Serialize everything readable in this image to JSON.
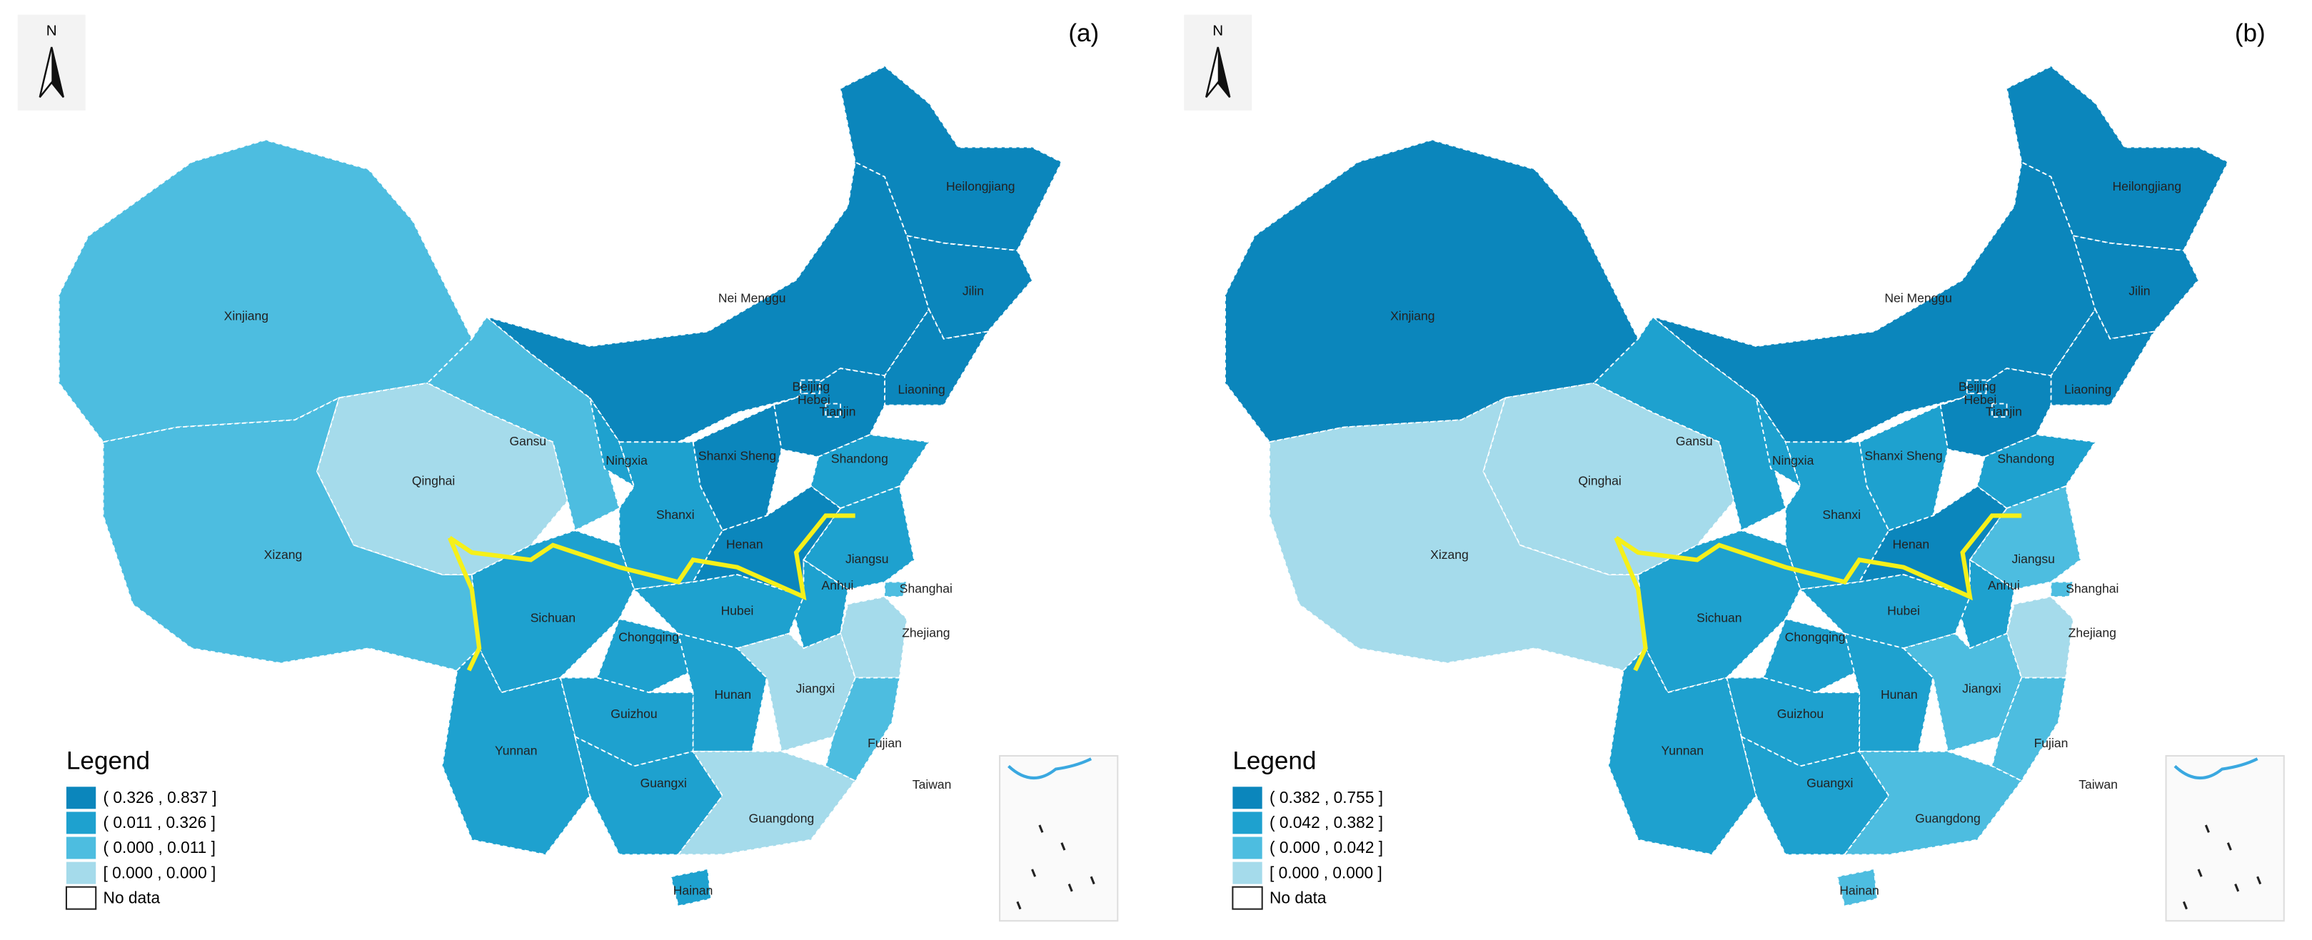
{
  "panels": [
    {
      "label": "(a)",
      "north": "N",
      "legend": {
        "title": "Legend",
        "items": [
          {
            "label": "( 0.326 , 0.837 ]",
            "color": "#0b86bc"
          },
          {
            "label": "( 0.011 , 0.326 ]",
            "color": "#1ea1cf"
          },
          {
            "label": "( 0.000 , 0.011 ]",
            "color": "#4dbde0"
          },
          {
            "label": "[ 0.000 , 0.000 ]",
            "color": "#a5dbeb"
          }
        ],
        "no_data": "No data"
      },
      "regions": [
        {
          "label": "Xinjiang",
          "color": "#4dbde0"
        },
        {
          "label": "Xizang",
          "color": "#4dbde0"
        },
        {
          "label": "Qinghai",
          "color": "#a5dbeb"
        },
        {
          "label": "Gansu",
          "color": "#4dbde0"
        },
        {
          "label": "Nei Menggu",
          "color": "#0b86bc"
        },
        {
          "label": "Heilongjiang",
          "color": "#0b86bc"
        },
        {
          "label": "Jilin",
          "color": "#0b86bc"
        },
        {
          "label": "Liaoning",
          "color": "#0b86bc"
        },
        {
          "label": "Hebei",
          "color": "#0b86bc"
        },
        {
          "label": "Beijing",
          "color": "#0b86bc"
        },
        {
          "label": "Tianjin",
          "color": "#0b86bc"
        },
        {
          "label": "Shanxi Sheng",
          "color": "#0b86bc"
        },
        {
          "label": "Ningxia",
          "color": "#1ea1cf"
        },
        {
          "label": "Shanxi",
          "color": "#1ea1cf"
        },
        {
          "label": "Shandong",
          "color": "#1ea1cf"
        },
        {
          "label": "Henan",
          "color": "#0b86bc"
        },
        {
          "label": "Jiangsu",
          "color": "#1ea1cf"
        },
        {
          "label": "Anhui",
          "color": "#1ea1cf"
        },
        {
          "label": "Shanghai",
          "color": "#4dbde0"
        },
        {
          "label": "Zhejiang",
          "color": "#a5dbeb"
        },
        {
          "label": "Hubei",
          "color": "#1ea1cf"
        },
        {
          "label": "Sichuan",
          "color": "#1ea1cf"
        },
        {
          "label": "Chongqing",
          "color": "#1ea1cf"
        },
        {
          "label": "Hunan",
          "color": "#1ea1cf"
        },
        {
          "label": "Jiangxi",
          "color": "#a5dbeb"
        },
        {
          "label": "Fujian",
          "color": "#4dbde0"
        },
        {
          "label": "Guizhou",
          "color": "#1ea1cf"
        },
        {
          "label": "Yunnan",
          "color": "#1ea1cf"
        },
        {
          "label": "Guangxi",
          "color": "#1ea1cf"
        },
        {
          "label": "Guangdong",
          "color": "#a5dbeb"
        },
        {
          "label": "Hainan",
          "color": "#1ea1cf"
        },
        {
          "label": "Taiwan",
          "color": "#ffffff"
        }
      ]
    },
    {
      "label": "(b)",
      "north": "N",
      "legend": {
        "title": "Legend",
        "items": [
          {
            "label": "( 0.382 , 0.755 ]",
            "color": "#0b86bc"
          },
          {
            "label": "( 0.042 , 0.382 ]",
            "color": "#1ea1cf"
          },
          {
            "label": "( 0.000 , 0.042 ]",
            "color": "#4dbde0"
          },
          {
            "label": "[ 0.000 , 0.000 ]",
            "color": "#a5dbeb"
          }
        ],
        "no_data": "No data"
      },
      "regions": [
        {
          "label": "Xinjiang",
          "color": "#0b86bc"
        },
        {
          "label": "Xizang",
          "color": "#a5dbeb"
        },
        {
          "label": "Qinghai",
          "color": "#a5dbeb"
        },
        {
          "label": "Gansu",
          "color": "#1ea1cf"
        },
        {
          "label": "Nei Menggu",
          "color": "#0b86bc"
        },
        {
          "label": "Heilongjiang",
          "color": "#0b86bc"
        },
        {
          "label": "Jilin",
          "color": "#0b86bc"
        },
        {
          "label": "Liaoning",
          "color": "#0b86bc"
        },
        {
          "label": "Hebei",
          "color": "#0b86bc"
        },
        {
          "label": "Beijing",
          "color": "#0b86bc"
        },
        {
          "label": "Tianjin",
          "color": "#0b86bc"
        },
        {
          "label": "Shanxi Sheng",
          "color": "#1ea1cf"
        },
        {
          "label": "Ningxia",
          "color": "#1ea1cf"
        },
        {
          "label": "Shanxi",
          "color": "#1ea1cf"
        },
        {
          "label": "Shandong",
          "color": "#1ea1cf"
        },
        {
          "label": "Henan",
          "color": "#0b86bc"
        },
        {
          "label": "Jiangsu",
          "color": "#4dbde0"
        },
        {
          "label": "Anhui",
          "color": "#1ea1cf"
        },
        {
          "label": "Shanghai",
          "color": "#4dbde0"
        },
        {
          "label": "Zhejiang",
          "color": "#a5dbeb"
        },
        {
          "label": "Hubei",
          "color": "#1ea1cf"
        },
        {
          "label": "Sichuan",
          "color": "#1ea1cf"
        },
        {
          "label": "Chongqing",
          "color": "#1ea1cf"
        },
        {
          "label": "Hunan",
          "color": "#1ea1cf"
        },
        {
          "label": "Jiangxi",
          "color": "#4dbde0"
        },
        {
          "label": "Fujian",
          "color": "#4dbde0"
        },
        {
          "label": "Guizhou",
          "color": "#1ea1cf"
        },
        {
          "label": "Yunnan",
          "color": "#1ea1cf"
        },
        {
          "label": "Guangxi",
          "color": "#1ea1cf"
        },
        {
          "label": "Guangdong",
          "color": "#4dbde0"
        },
        {
          "label": "Hainan",
          "color": "#4dbde0"
        },
        {
          "label": "Taiwan",
          "color": "#ffffff"
        }
      ]
    }
  ]
}
